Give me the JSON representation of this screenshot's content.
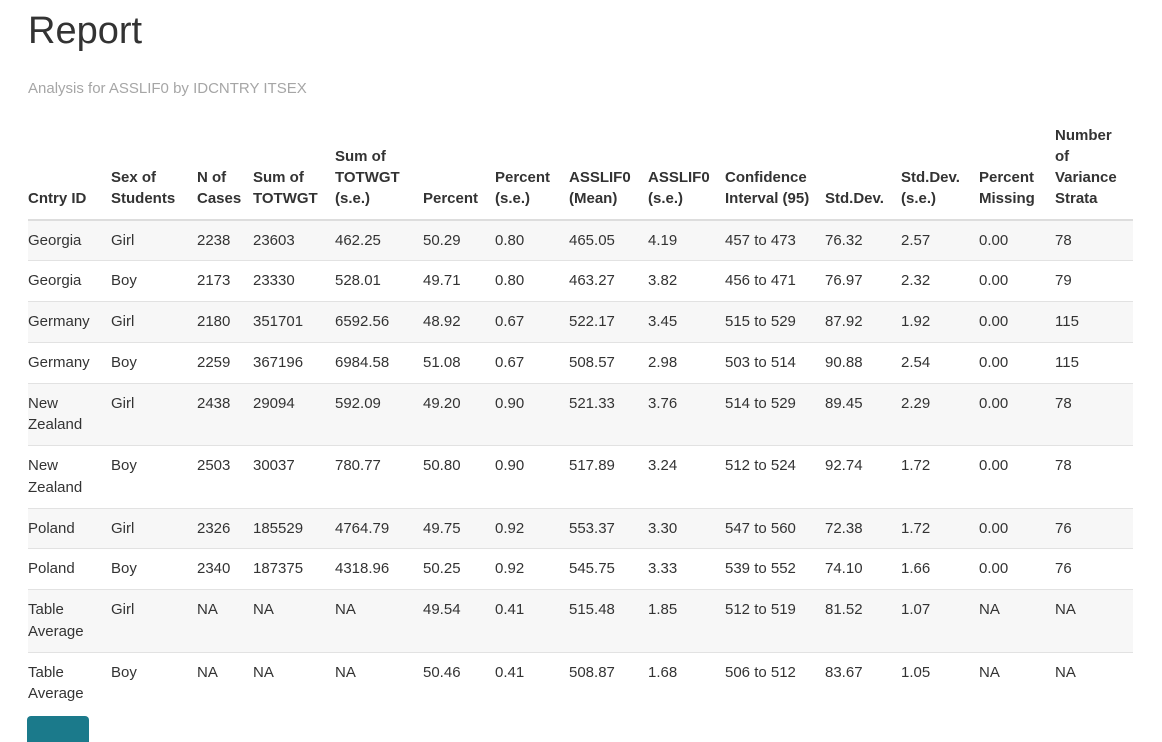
{
  "report": {
    "title": "Report",
    "subtitle": "Analysis for ASSLIF0 by IDCNTRY ITSEX"
  },
  "table": {
    "columns": [
      "Cntry ID",
      "Sex of Students",
      "N of Cases",
      "Sum of TOTWGT",
      "Sum of TOTWGT (s.e.)",
      "Percent",
      "Percent (s.e.)",
      "ASSLIF0 (Mean)",
      "ASSLIF0 (s.e.)",
      "Confidence Interval (95)",
      "Std.Dev.",
      "Std.Dev. (s.e.)",
      "Percent Missing",
      "Number of Variance Strata"
    ],
    "rows": [
      [
        "Georgia",
        "Girl",
        "2238",
        "23603",
        "462.25",
        "50.29",
        "0.80",
        "465.05",
        "4.19",
        "457 to 473",
        "76.32",
        "2.57",
        "0.00",
        "78"
      ],
      [
        "Georgia",
        "Boy",
        "2173",
        "23330",
        "528.01",
        "49.71",
        "0.80",
        "463.27",
        "3.82",
        "456 to 471",
        "76.97",
        "2.32",
        "0.00",
        "79"
      ],
      [
        "Germany",
        "Girl",
        "2180",
        "351701",
        "6592.56",
        "48.92",
        "0.67",
        "522.17",
        "3.45",
        "515 to 529",
        "87.92",
        "1.92",
        "0.00",
        "115"
      ],
      [
        "Germany",
        "Boy",
        "2259",
        "367196",
        "6984.58",
        "51.08",
        "0.67",
        "508.57",
        "2.98",
        "503 to 514",
        "90.88",
        "2.54",
        "0.00",
        "115"
      ],
      [
        "New Zealand",
        "Girl",
        "2438",
        "29094",
        "592.09",
        "49.20",
        "0.90",
        "521.33",
        "3.76",
        "514 to 529",
        "89.45",
        "2.29",
        "0.00",
        "78"
      ],
      [
        "New Zealand",
        "Boy",
        "2503",
        "30037",
        "780.77",
        "50.80",
        "0.90",
        "517.89",
        "3.24",
        "512 to 524",
        "92.74",
        "1.72",
        "0.00",
        "78"
      ],
      [
        "Poland",
        "Girl",
        "2326",
        "185529",
        "4764.79",
        "49.75",
        "0.92",
        "553.37",
        "3.30",
        "547 to 560",
        "72.38",
        "1.72",
        "0.00",
        "76"
      ],
      [
        "Poland",
        "Boy",
        "2340",
        "187375",
        "4318.96",
        "50.25",
        "0.92",
        "545.75",
        "3.33",
        "539 to 552",
        "74.10",
        "1.66",
        "0.00",
        "76"
      ],
      [
        "Table Average",
        "Girl",
        "NA",
        "NA",
        "NA",
        "49.54",
        "0.41",
        "515.48",
        "1.85",
        "512 to 519",
        "81.52",
        "1.07",
        "NA",
        "NA"
      ],
      [
        "Table Average",
        "Boy",
        "NA",
        "NA",
        "NA",
        "50.46",
        "0.41",
        "508.87",
        "1.68",
        "506 to 512",
        "83.67",
        "1.05",
        "NA",
        "NA"
      ]
    ]
  },
  "colors": {
    "text": "#333333",
    "subtitle": "#a6a6a6",
    "stripe": "#f7f7f7",
    "border": "#dddddd",
    "partial_element": "#1b7a8b"
  }
}
